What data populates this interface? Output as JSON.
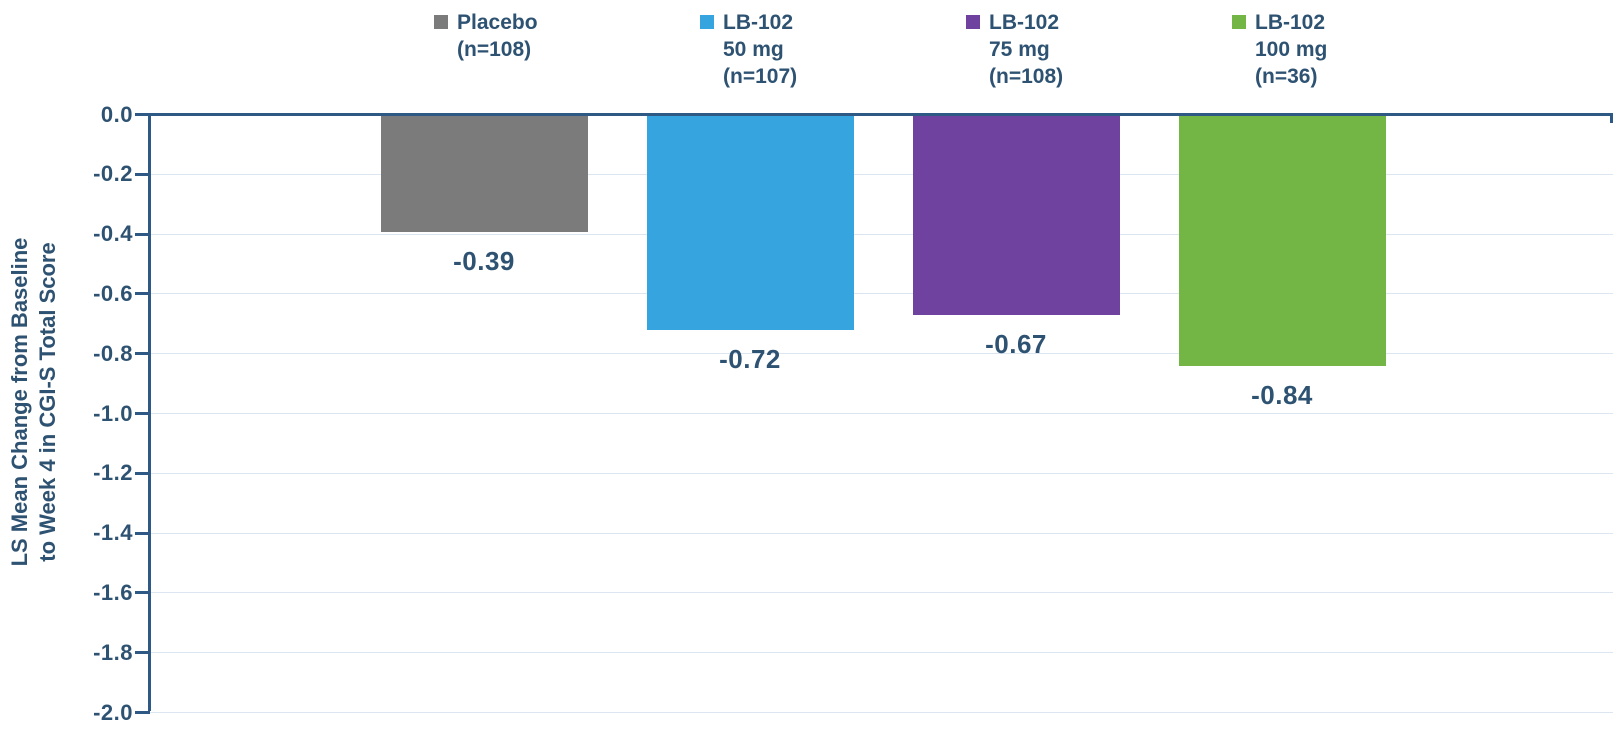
{
  "figure": {
    "background": "#FFFFFF"
  },
  "chart_data": {
    "type": "bar",
    "title": "",
    "ylabel": "LS Mean Change from Baseline to Week 4 in CGI-S Total Score",
    "ylabel_lines": [
      "LS Mean Change from Baseline",
      "to Week 4 in CGI-S Total Score"
    ],
    "ylim": [
      0,
      -2.0
    ],
    "ytick_step": 0.2,
    "ytick_labels": [
      "0.0",
      "-0.2",
      "-0.4",
      "-0.6",
      "-0.8",
      "-1.0",
      "-1.2",
      "-1.4",
      "-1.6",
      "-1.8",
      "-2.0"
    ],
    "grid": true,
    "legend_position": "top",
    "series": [
      {
        "name": "Placebo (n=108)",
        "legend_lines": [
          "Placebo",
          "(n=108)"
        ],
        "value": -0.39,
        "value_label": "-0.39",
        "color": "#7B7B7B"
      },
      {
        "name": "LB-102 50 mg (n=107)",
        "legend_lines": [
          "LB-102",
          "50 mg",
          "(n=107)"
        ],
        "value": -0.72,
        "value_label": "-0.72",
        "color": "#36A5DF"
      },
      {
        "name": "LB-102 75 mg (n=108)",
        "legend_lines": [
          "LB-102",
          "75 mg",
          "(n=108)"
        ],
        "value": -0.67,
        "value_label": "-0.67",
        "color": "#6F42A0"
      },
      {
        "name": "LB-102 100 mg (n=36)",
        "legend_lines": [
          "LB-102",
          "100 mg",
          "(n=36)"
        ],
        "value": -0.84,
        "value_label": "-0.84",
        "color": "#73B646"
      }
    ],
    "colors": {
      "axis": "#2E5984",
      "text": "#2E5272",
      "gridline": "#DCE6F1",
      "background": "#FFFFFF"
    }
  }
}
